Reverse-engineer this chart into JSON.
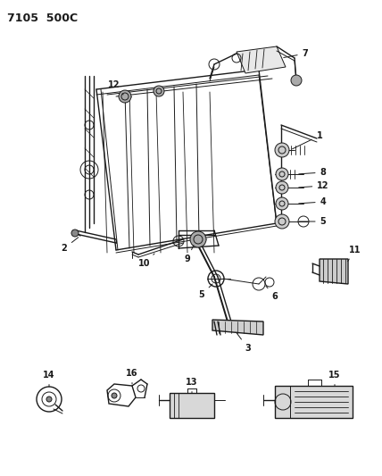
{
  "title": "7105  500C",
  "bg": "#ffffff",
  "lc": "#1a1a1a",
  "figsize": [
    4.28,
    5.33
  ],
  "dpi": 100
}
